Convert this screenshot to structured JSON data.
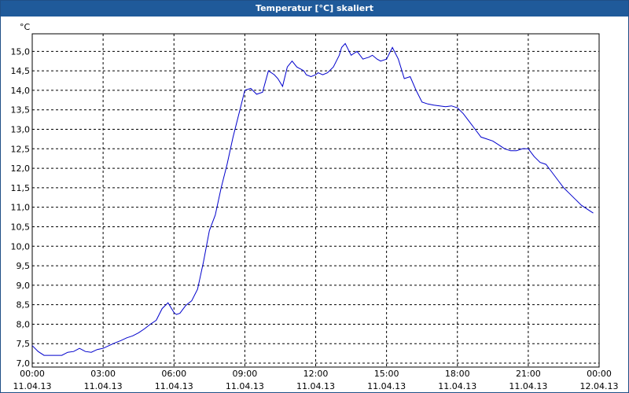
{
  "window": {
    "title": "Temperatur [°C] skaliert"
  },
  "chart_data": {
    "type": "line",
    "title": "Temperatur [°C] skaliert",
    "ylabel": "°C",
    "xlabel": "",
    "ylim": [
      6.9,
      15.45
    ],
    "xlim": [
      0,
      24
    ],
    "grid": true,
    "line_color": "#0000cc",
    "y_ticks": [
      "7,0",
      "7,5",
      "8,0",
      "8,5",
      "9,0",
      "9,5",
      "10,0",
      "10,5",
      "11,0",
      "11,5",
      "12,0",
      "12,5",
      "13,0",
      "13,5",
      "14,0",
      "14,5",
      "15,0"
    ],
    "y_tick_values": [
      7.0,
      7.5,
      8.0,
      8.5,
      9.0,
      9.5,
      10.0,
      10.5,
      11.0,
      11.5,
      12.0,
      12.5,
      13.0,
      13.5,
      14.0,
      14.5,
      15.0
    ],
    "x_tick_values": [
      0,
      3,
      6,
      9,
      12,
      15,
      18,
      21,
      24
    ],
    "x_tick_times": [
      "00:00",
      "03:00",
      "06:00",
      "09:00",
      "12:00",
      "15:00",
      "18:00",
      "21:00",
      "00:00"
    ],
    "x_tick_dates": [
      "11.04.13",
      "11.04.13",
      "11.04.13",
      "11.04.13",
      "11.04.13",
      "11.04.13",
      "11.04.13",
      "11.04.13",
      "12.04.13"
    ],
    "series": [
      {
        "x": [
          0,
          0.25,
          0.5,
          0.75,
          1,
          1.25,
          1.5,
          1.75,
          2,
          2.25,
          2.5,
          2.75,
          3,
          3.25,
          3.5,
          3.75,
          4,
          4.25,
          4.5,
          4.75,
          5,
          5.25,
          5.5,
          5.75,
          5.9,
          6,
          6.1,
          6.25,
          6.4,
          6.5,
          6.75,
          7,
          7.25,
          7.5,
          7.75,
          8,
          8.25,
          8.5,
          8.75,
          9,
          9.25,
          9.5,
          9.75,
          10,
          10.25,
          10.4,
          10.6,
          10.8,
          11,
          11.2,
          11.5,
          11.6,
          11.8,
          12,
          12.1,
          12.3,
          12.5,
          12.75,
          13,
          13.1,
          13.25,
          13.5,
          13.75,
          14,
          14.1,
          14.25,
          14.4,
          14.6,
          14.75,
          15,
          15.25,
          15.5,
          15.75,
          16,
          16.25,
          16.5,
          16.75,
          17,
          17.25,
          17.5,
          17.75,
          18,
          18.25,
          18.5,
          18.75,
          19,
          19.25,
          19.5,
          19.75,
          20,
          20.25,
          20.5,
          20.75,
          21,
          21.25,
          21.5,
          21.75,
          22,
          22.25,
          22.5,
          22.75,
          23,
          23.25,
          23.5,
          23.75
        ],
        "y": [
          7.45,
          7.3,
          7.2,
          7.2,
          7.2,
          7.2,
          7.28,
          7.3,
          7.38,
          7.3,
          7.28,
          7.35,
          7.38,
          7.45,
          7.52,
          7.58,
          7.65,
          7.7,
          7.78,
          7.88,
          8.0,
          8.1,
          8.4,
          8.55,
          8.4,
          8.3,
          8.25,
          8.28,
          8.4,
          8.48,
          8.6,
          8.9,
          9.6,
          10.4,
          10.8,
          11.5,
          12.1,
          12.8,
          13.4,
          14.0,
          14.05,
          13.9,
          13.95,
          14.5,
          14.4,
          14.3,
          14.1,
          14.6,
          14.75,
          14.6,
          14.5,
          14.4,
          14.35,
          14.4,
          14.45,
          14.4,
          14.45,
          14.6,
          14.9,
          15.1,
          15.2,
          14.9,
          15.0,
          14.8,
          14.82,
          14.85,
          14.9,
          14.8,
          14.75,
          14.8,
          15.1,
          14.8,
          14.3,
          14.35,
          14.0,
          13.7,
          13.65,
          13.62,
          13.6,
          13.58,
          13.6,
          13.55,
          13.4,
          13.2,
          13.0,
          12.8,
          12.75,
          12.7,
          12.6,
          12.5,
          12.45,
          12.45,
          12.5,
          12.5,
          12.3,
          12.15,
          12.1,
          11.9,
          11.7,
          11.5,
          11.35,
          11.2,
          11.05,
          10.95,
          10.85
        ]
      }
    ]
  }
}
